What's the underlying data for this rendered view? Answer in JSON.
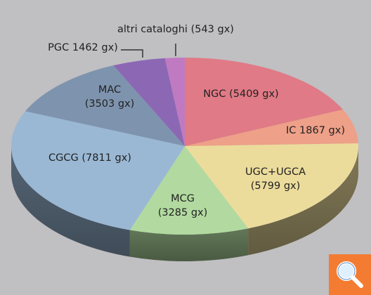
{
  "chart_data": {
    "type": "pie",
    "title": "",
    "slices": [
      {
        "label": "NGC (5409 gx)",
        "value": 5409,
        "color": "#e07a86"
      },
      {
        "label": "IC 1867 gx)",
        "value": 1867,
        "color": "#eea088"
      },
      {
        "label": "UGC+UGCA (5799 gx)",
        "value": 5799,
        "color": "#ecdc9c"
      },
      {
        "label": "MCG (3285 gx)",
        "value": 3285,
        "color": "#b2daa0"
      },
      {
        "label": "CGCG (7811 gx)",
        "value": 7811,
        "color": "#9ab8d4"
      },
      {
        "label": "MAC (3503 gx)",
        "value": 3503,
        "color": "#7e94ae"
      },
      {
        "label": "PGC 1462 gx)",
        "value": 1462,
        "color": "#8c68b4"
      },
      {
        "label": "altri cataloghi (543 gx)",
        "value": 543,
        "color": "#c07ac2"
      }
    ],
    "legend": "none"
  },
  "colors": {
    "background": "#c0bfc2",
    "zoom_button": "#f47c32"
  },
  "zoom_button": {
    "icon": "magnifier-icon"
  }
}
